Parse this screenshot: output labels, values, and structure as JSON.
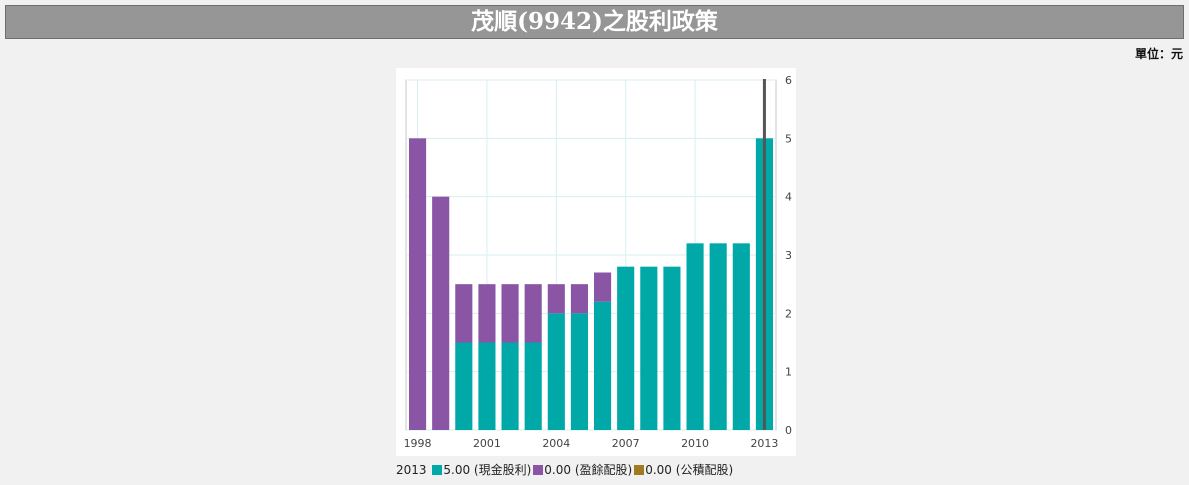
{
  "header": {
    "title": "茂順(9942)之股利政策"
  },
  "unit": {
    "label": "單位：元"
  },
  "chart_data": {
    "type": "bar",
    "stacked": true,
    "categories": [
      "1998",
      "1999",
      "2000",
      "2001",
      "2002",
      "2003",
      "2004",
      "2005",
      "2006",
      "2007",
      "2008",
      "2009",
      "2010",
      "2011",
      "2012",
      "2013"
    ],
    "x_tick_labels": [
      "1998",
      "2001",
      "2004",
      "2007",
      "2010",
      "2013"
    ],
    "series": [
      {
        "name": "現金股利",
        "color": "#00a8a8",
        "values": [
          0,
          0,
          1.5,
          1.5,
          1.5,
          1.5,
          2.0,
          2.0,
          2.2,
          2.8,
          2.8,
          2.8,
          3.2,
          3.2,
          3.2,
          5.0
        ]
      },
      {
        "name": "盈餘配股",
        "color": "#8b55a5",
        "values": [
          5.0,
          4.0,
          1.0,
          1.0,
          1.0,
          1.0,
          0.5,
          0.5,
          0.5,
          0,
          0,
          0,
          0,
          0,
          0,
          0
        ]
      },
      {
        "name": "公積配股",
        "color": "#a07a1e",
        "values": [
          0,
          0,
          0,
          0,
          0,
          0,
          0,
          0,
          0,
          0,
          0,
          0,
          0,
          0,
          0,
          0
        ]
      }
    ],
    "ylim": [
      0,
      6
    ],
    "yticks": [
      0,
      1,
      2,
      3,
      4,
      5,
      6
    ],
    "y_axis_side": "right",
    "grid": true,
    "highlight_category": "2013"
  },
  "legend": {
    "year": "2013",
    "items": [
      {
        "value": "5.00",
        "label": "(現金股利)",
        "color": "#00a8a8"
      },
      {
        "value": "0.00",
        "label": "(盈餘配股)",
        "color": "#8b55a5"
      },
      {
        "value": "0.00",
        "label": "(公積配股)",
        "color": "#a07a1e"
      }
    ]
  }
}
